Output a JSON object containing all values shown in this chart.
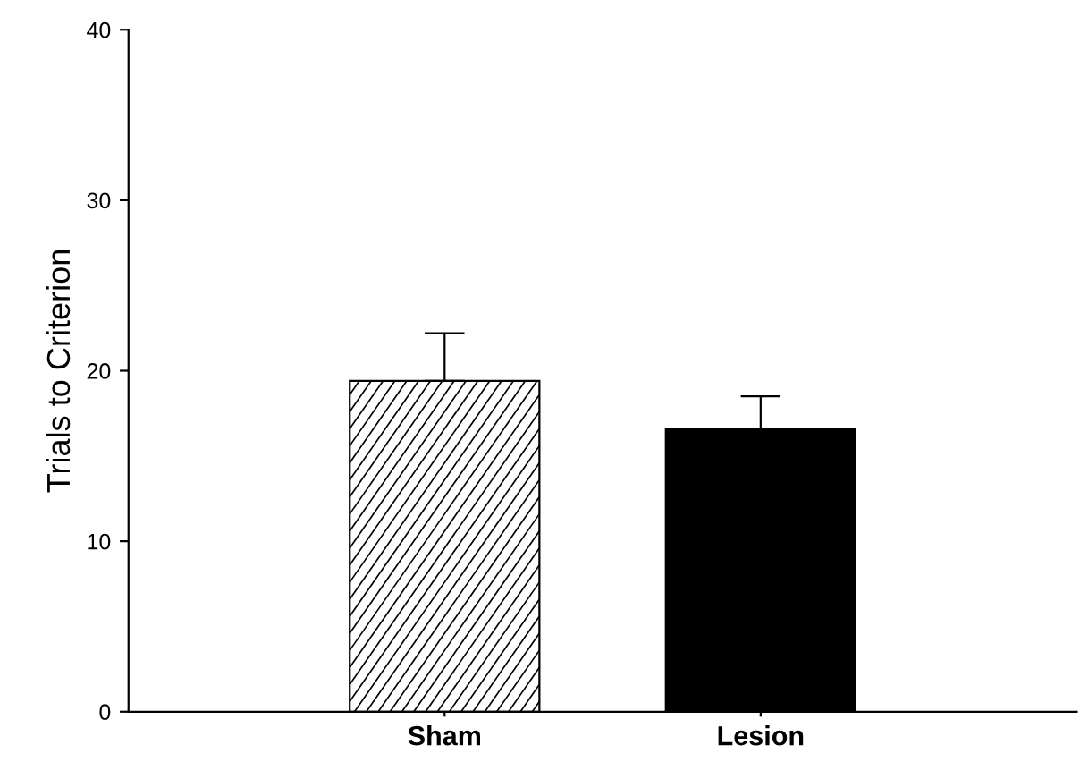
{
  "chart_data": {
    "type": "bar",
    "ylabel": "Trials to Criterion",
    "categories": [
      "Sham",
      "Lesion"
    ],
    "values": [
      19.4,
      16.6
    ],
    "errors": [
      2.8,
      1.9
    ],
    "colors": [
      "#ffffff",
      "#000000"
    ],
    "ylim": [
      0,
      40
    ],
    "yticks": [
      0,
      10,
      20,
      30,
      40
    ],
    "grid": false,
    "legend": false
  }
}
